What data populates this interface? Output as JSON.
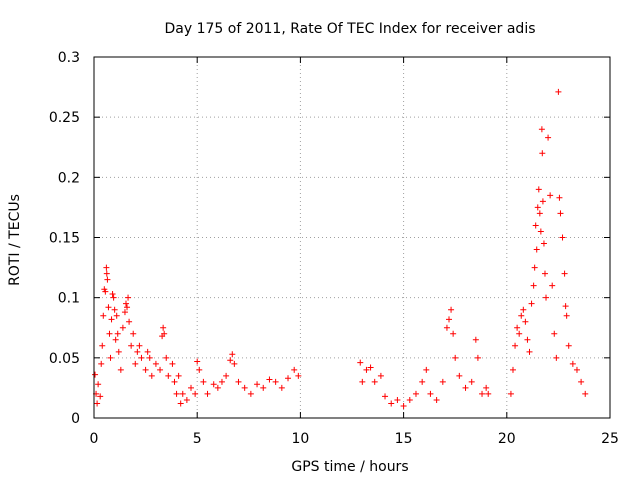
{
  "chart_data": {
    "type": "scatter",
    "title": "Day 175 of 2011, Rate Of TEC Index for receiver adis",
    "xlabel": "GPS time / hours",
    "ylabel": "ROTI / TECUs",
    "xlim": [
      0,
      25
    ],
    "ylim": [
      0,
      0.3
    ],
    "xticks": [
      0,
      5,
      10,
      15,
      20,
      25
    ],
    "yticks": [
      0,
      0.05,
      0.1,
      0.15,
      0.2,
      0.25,
      0.3
    ],
    "xtick_labels": [
      "0",
      "5",
      "10",
      "15",
      "20",
      "25"
    ],
    "ytick_labels": [
      "0",
      "0.05",
      "0.1",
      "0.15",
      "0.2",
      "0.25",
      "0.3"
    ],
    "grid": true,
    "marker": "+",
    "series": [
      {
        "color": "#ff0000",
        "points": [
          [
            0.05,
            0.036
          ],
          [
            0.1,
            0.02
          ],
          [
            0.15,
            0.012
          ],
          [
            0.2,
            0.028
          ],
          [
            0.3,
            0.018
          ],
          [
            0.35,
            0.045
          ],
          [
            0.4,
            0.06
          ],
          [
            0.45,
            0.085
          ],
          [
            0.5,
            0.107
          ],
          [
            0.55,
            0.105
          ],
          [
            0.6,
            0.125
          ],
          [
            0.62,
            0.12
          ],
          [
            0.65,
            0.115
          ],
          [
            0.7,
            0.092
          ],
          [
            0.75,
            0.07
          ],
          [
            0.8,
            0.05
          ],
          [
            0.85,
            0.082
          ],
          [
            0.9,
            0.103
          ],
          [
            0.95,
            0.1
          ],
          [
            1.0,
            0.09
          ],
          [
            1.05,
            0.065
          ],
          [
            1.1,
            0.085
          ],
          [
            1.15,
            0.07
          ],
          [
            1.2,
            0.055
          ],
          [
            1.3,
            0.04
          ],
          [
            1.4,
            0.075
          ],
          [
            1.5,
            0.088
          ],
          [
            1.55,
            0.095
          ],
          [
            1.6,
            0.092
          ],
          [
            1.65,
            0.1
          ],
          [
            1.7,
            0.08
          ],
          [
            1.8,
            0.06
          ],
          [
            1.9,
            0.07
          ],
          [
            2.0,
            0.045
          ],
          [
            2.1,
            0.055
          ],
          [
            2.2,
            0.06
          ],
          [
            2.3,
            0.05
          ],
          [
            2.5,
            0.04
          ],
          [
            2.6,
            0.055
          ],
          [
            2.7,
            0.05
          ],
          [
            2.8,
            0.035
          ],
          [
            3.0,
            0.045
          ],
          [
            3.2,
            0.04
          ],
          [
            3.3,
            0.068
          ],
          [
            3.35,
            0.075
          ],
          [
            3.4,
            0.07
          ],
          [
            3.5,
            0.05
          ],
          [
            3.6,
            0.035
          ],
          [
            3.8,
            0.045
          ],
          [
            3.9,
            0.03
          ],
          [
            4.0,
            0.02
          ],
          [
            4.1,
            0.035
          ],
          [
            4.2,
            0.012
          ],
          [
            4.3,
            0.02
          ],
          [
            4.5,
            0.015
          ],
          [
            4.7,
            0.025
          ],
          [
            4.9,
            0.02
          ],
          [
            5.0,
            0.047
          ],
          [
            5.1,
            0.04
          ],
          [
            5.3,
            0.03
          ],
          [
            5.5,
            0.02
          ],
          [
            5.8,
            0.028
          ],
          [
            6.0,
            0.025
          ],
          [
            6.2,
            0.03
          ],
          [
            6.4,
            0.035
          ],
          [
            6.6,
            0.048
          ],
          [
            6.7,
            0.053
          ],
          [
            6.8,
            0.045
          ],
          [
            7.0,
            0.03
          ],
          [
            7.3,
            0.025
          ],
          [
            7.6,
            0.02
          ],
          [
            7.9,
            0.028
          ],
          [
            8.2,
            0.025
          ],
          [
            8.5,
            0.032
          ],
          [
            8.8,
            0.03
          ],
          [
            9.1,
            0.025
          ],
          [
            9.4,
            0.033
          ],
          [
            9.7,
            0.04
          ],
          [
            9.9,
            0.035
          ],
          [
            12.9,
            0.046
          ],
          [
            13.0,
            0.03
          ],
          [
            13.2,
            0.04
          ],
          [
            13.4,
            0.042
          ],
          [
            13.6,
            0.03
          ],
          [
            13.9,
            0.035
          ],
          [
            14.1,
            0.018
          ],
          [
            14.4,
            0.012
          ],
          [
            14.7,
            0.015
          ],
          [
            15.0,
            0.01
          ],
          [
            15.3,
            0.015
          ],
          [
            15.6,
            0.02
          ],
          [
            15.9,
            0.03
          ],
          [
            16.1,
            0.04
          ],
          [
            16.3,
            0.02
          ],
          [
            16.6,
            0.015
          ],
          [
            16.9,
            0.03
          ],
          [
            17.1,
            0.075
          ],
          [
            17.2,
            0.082
          ],
          [
            17.3,
            0.09
          ],
          [
            17.4,
            0.07
          ],
          [
            17.5,
            0.05
          ],
          [
            17.7,
            0.035
          ],
          [
            18.0,
            0.025
          ],
          [
            18.3,
            0.03
          ],
          [
            18.5,
            0.065
          ],
          [
            18.6,
            0.05
          ],
          [
            18.8,
            0.02
          ],
          [
            19.0,
            0.025
          ],
          [
            19.1,
            0.02
          ],
          [
            20.2,
            0.02
          ],
          [
            20.3,
            0.04
          ],
          [
            20.4,
            0.06
          ],
          [
            20.5,
            0.075
          ],
          [
            20.6,
            0.07
          ],
          [
            20.7,
            0.085
          ],
          [
            20.8,
            0.09
          ],
          [
            20.9,
            0.08
          ],
          [
            21.0,
            0.065
          ],
          [
            21.1,
            0.055
          ],
          [
            21.2,
            0.095
          ],
          [
            21.3,
            0.11
          ],
          [
            21.35,
            0.125
          ],
          [
            21.4,
            0.16
          ],
          [
            21.45,
            0.14
          ],
          [
            21.5,
            0.175
          ],
          [
            21.55,
            0.19
          ],
          [
            21.6,
            0.17
          ],
          [
            21.65,
            0.155
          ],
          [
            21.7,
            0.24
          ],
          [
            21.72,
            0.22
          ],
          [
            21.75,
            0.18
          ],
          [
            21.8,
            0.145
          ],
          [
            21.85,
            0.12
          ],
          [
            21.9,
            0.1
          ],
          [
            22.0,
            0.233
          ],
          [
            22.1,
            0.185
          ],
          [
            22.2,
            0.11
          ],
          [
            22.3,
            0.07
          ],
          [
            22.4,
            0.05
          ],
          [
            22.5,
            0.271
          ],
          [
            22.55,
            0.183
          ],
          [
            22.6,
            0.17
          ],
          [
            22.7,
            0.15
          ],
          [
            22.8,
            0.12
          ],
          [
            22.85,
            0.093
          ],
          [
            22.9,
            0.085
          ],
          [
            23.0,
            0.06
          ],
          [
            23.2,
            0.045
          ],
          [
            23.4,
            0.04
          ],
          [
            23.6,
            0.03
          ],
          [
            23.8,
            0.02
          ]
        ]
      }
    ]
  }
}
